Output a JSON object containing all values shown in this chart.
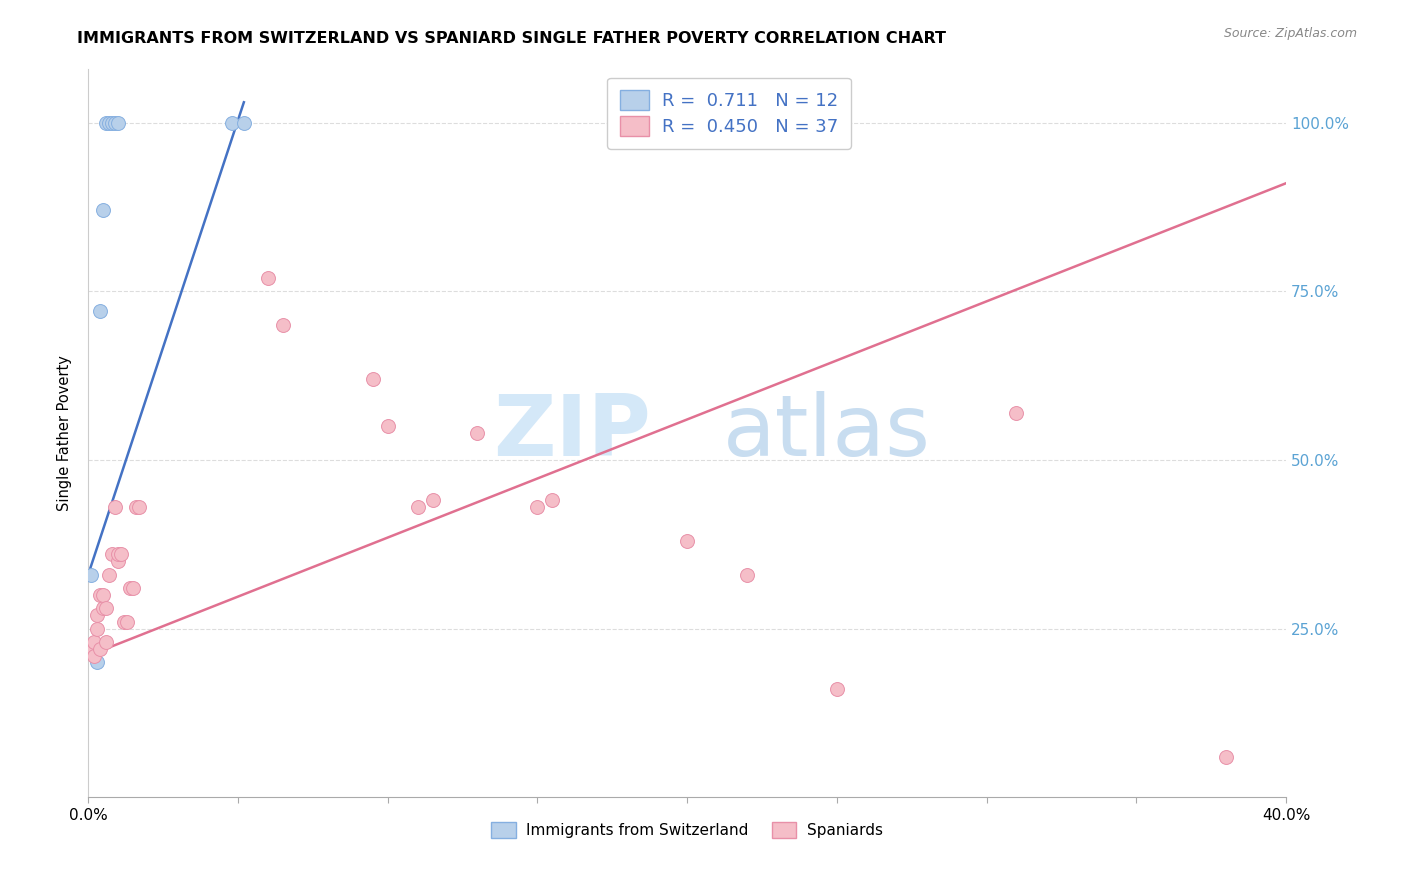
{
  "title": "IMMIGRANTS FROM SWITZERLAND VS SPANIARD SINGLE FATHER POVERTY CORRELATION CHART",
  "source": "Source: ZipAtlas.com",
  "ylabel": "Single Father Poverty",
  "ytick_labels": [
    "100.0%",
    "75.0%",
    "50.0%",
    "25.0%"
  ],
  "ytick_positions": [
    1.0,
    0.75,
    0.5,
    0.25
  ],
  "xlim": [
    0.0,
    0.4
  ],
  "ylim": [
    0.0,
    1.08
  ],
  "legend_label_blue": "Immigrants from Switzerland",
  "legend_label_pink": "Spaniards",
  "R_blue": 0.711,
  "N_blue": 12,
  "R_pink": 0.45,
  "N_pink": 37,
  "blue_scatter_x": [
    0.001,
    0.002,
    0.003,
    0.004,
    0.005,
    0.006,
    0.007,
    0.008,
    0.009,
    0.01,
    0.048,
    0.052
  ],
  "blue_scatter_y": [
    0.33,
    0.22,
    0.2,
    0.72,
    0.87,
    1.0,
    1.0,
    1.0,
    1.0,
    1.0,
    1.0,
    1.0
  ],
  "pink_scatter_x": [
    0.001,
    0.002,
    0.002,
    0.003,
    0.003,
    0.004,
    0.004,
    0.005,
    0.005,
    0.006,
    0.006,
    0.007,
    0.008,
    0.009,
    0.01,
    0.01,
    0.011,
    0.012,
    0.013,
    0.014,
    0.015,
    0.016,
    0.017,
    0.06,
    0.065,
    0.095,
    0.1,
    0.11,
    0.115,
    0.13,
    0.15,
    0.155,
    0.2,
    0.22,
    0.25,
    0.31,
    0.38
  ],
  "pink_scatter_y": [
    0.22,
    0.21,
    0.23,
    0.25,
    0.27,
    0.3,
    0.22,
    0.28,
    0.3,
    0.23,
    0.28,
    0.33,
    0.36,
    0.43,
    0.35,
    0.36,
    0.36,
    0.26,
    0.26,
    0.31,
    0.31,
    0.43,
    0.43,
    0.77,
    0.7,
    0.62,
    0.55,
    0.43,
    0.44,
    0.54,
    0.43,
    0.44,
    0.38,
    0.33,
    0.16,
    0.57,
    0.06
  ],
  "blue_line_x": [
    0.0,
    0.052
  ],
  "blue_line_y": [
    0.33,
    1.03
  ],
  "pink_line_x": [
    0.0,
    0.4
  ],
  "pink_line_y": [
    0.21,
    0.91
  ],
  "scatter_size": 100,
  "blue_scatter_color": "#b8d0ea",
  "blue_scatter_edge": "#85afe0",
  "pink_scatter_color": "#f5bec8",
  "pink_scatter_edge": "#e890a8",
  "blue_line_color": "#4472c4",
  "pink_line_color": "#e07090",
  "background_color": "#ffffff",
  "watermark_zip_color": "#d4e8f8",
  "watermark_atlas_color": "#c8ddf0",
  "grid_color": "#dddddd",
  "right_axis_color": "#5ba3d4",
  "title_fontsize": 11.5,
  "source_fontsize": 9
}
